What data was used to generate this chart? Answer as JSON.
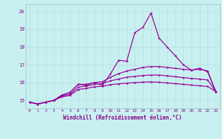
{
  "x": [
    0,
    1,
    2,
    3,
    4,
    5,
    6,
    7,
    8,
    9,
    10,
    11,
    12,
    13,
    14,
    15,
    16,
    17,
    18,
    19,
    20,
    21,
    22,
    23
  ],
  "line_spiky": [
    14.9,
    14.8,
    14.9,
    15.0,
    15.3,
    15.45,
    15.9,
    15.85,
    16.0,
    15.85,
    16.5,
    17.25,
    17.2,
    18.8,
    19.1,
    19.9,
    18.5,
    18.0,
    17.5,
    17.0,
    16.7,
    16.8,
    16.6,
    15.5
  ],
  "line_top": [
    14.9,
    14.8,
    14.9,
    15.0,
    15.3,
    15.45,
    15.9,
    15.9,
    16.0,
    16.05,
    16.3,
    16.5,
    16.65,
    16.75,
    16.85,
    16.9,
    16.9,
    16.85,
    16.8,
    16.75,
    16.7,
    16.75,
    16.65,
    15.5
  ],
  "line_mid": [
    14.9,
    14.8,
    14.9,
    15.0,
    15.25,
    15.35,
    15.75,
    15.8,
    15.9,
    15.95,
    16.1,
    16.2,
    16.3,
    16.35,
    16.4,
    16.42,
    16.42,
    16.38,
    16.33,
    16.28,
    16.23,
    16.2,
    16.15,
    15.5
  ],
  "line_bot": [
    14.9,
    14.8,
    14.9,
    15.0,
    15.2,
    15.28,
    15.62,
    15.67,
    15.76,
    15.8,
    15.88,
    15.93,
    15.97,
    16.0,
    16.02,
    16.04,
    16.02,
    15.98,
    15.94,
    15.9,
    15.86,
    15.82,
    15.78,
    15.5
  ],
  "bg_color": "#c8f0f0",
  "line_color": "#990099",
  "grid_color": "#b8dede",
  "axis_color": "#880088",
  "tick_color": "#880088",
  "xlabel": "Windchill (Refroidissement éolien,°C)",
  "yticks": [
    15,
    16,
    17,
    18,
    19,
    20
  ],
  "xticks": [
    0,
    1,
    2,
    3,
    4,
    5,
    6,
    7,
    8,
    9,
    10,
    11,
    12,
    13,
    14,
    15,
    16,
    17,
    18,
    19,
    20,
    21,
    22,
    23
  ],
  "ylim": [
    14.55,
    20.4
  ],
  "xlim": [
    -0.5,
    23.5
  ]
}
